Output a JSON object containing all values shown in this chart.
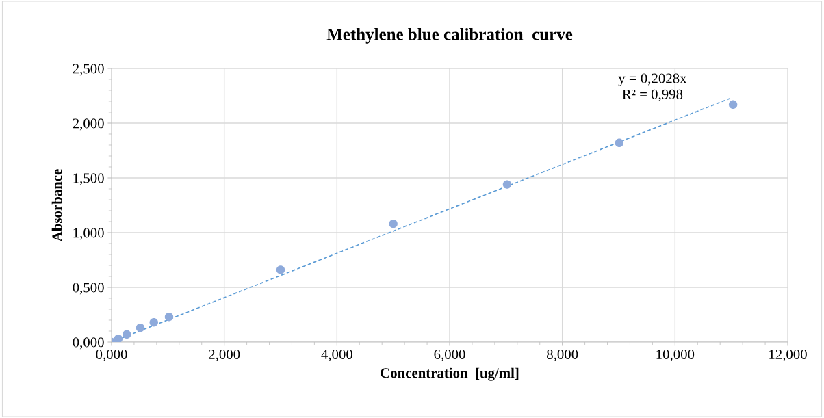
{
  "chart_data": {
    "type": "scatter",
    "title": "Methylene blue calibration  curve",
    "xlabel": "Concentration  [ug/ml]",
    "ylabel": "Absorbance",
    "series": [
      {
        "color": "#8eaadb",
        "marker": "circle",
        "x": [
          0.0,
          0.12,
          0.27,
          0.51,
          0.75,
          1.02,
          3.0,
          5.0,
          7.02,
          9.01,
          11.03
        ],
        "values": [
          0.0,
          0.03,
          0.07,
          0.13,
          0.18,
          0.23,
          0.66,
          1.08,
          1.44,
          1.82,
          2.17
        ]
      },
      {
        "type": "line",
        "color": "#5b9bd5",
        "line_style": "dashed",
        "marker": "none",
        "x": [
          0,
          10.97
        ],
        "values": [
          0,
          2.225
        ]
      }
    ],
    "annotations": [
      "y = 0,2028x\nR² = 0,998"
    ],
    "xlim": [
      0,
      12
    ],
    "ylim": [
      0,
      2.5
    ],
    "xticks": [
      {
        "value": 0,
        "label": "0,000"
      },
      {
        "value": 2,
        "label": "2,000"
      },
      {
        "value": 4,
        "label": "4,000"
      },
      {
        "value": 6,
        "label": "6,000"
      },
      {
        "value": 8,
        "label": "8,000"
      },
      {
        "value": 10,
        "label": "10,000"
      },
      {
        "value": 12,
        "label": "12,000"
      }
    ],
    "yticks": [
      {
        "value": 0,
        "label": "0,000"
      },
      {
        "value": 0.5,
        "label": "0,500"
      },
      {
        "value": 1,
        "label": "1,000"
      },
      {
        "value": 1.5,
        "label": "1,500"
      },
      {
        "value": 2,
        "label": "2,000"
      },
      {
        "value": 2.5,
        "label": "2,500"
      }
    ],
    "grid": true,
    "legend": false
  }
}
